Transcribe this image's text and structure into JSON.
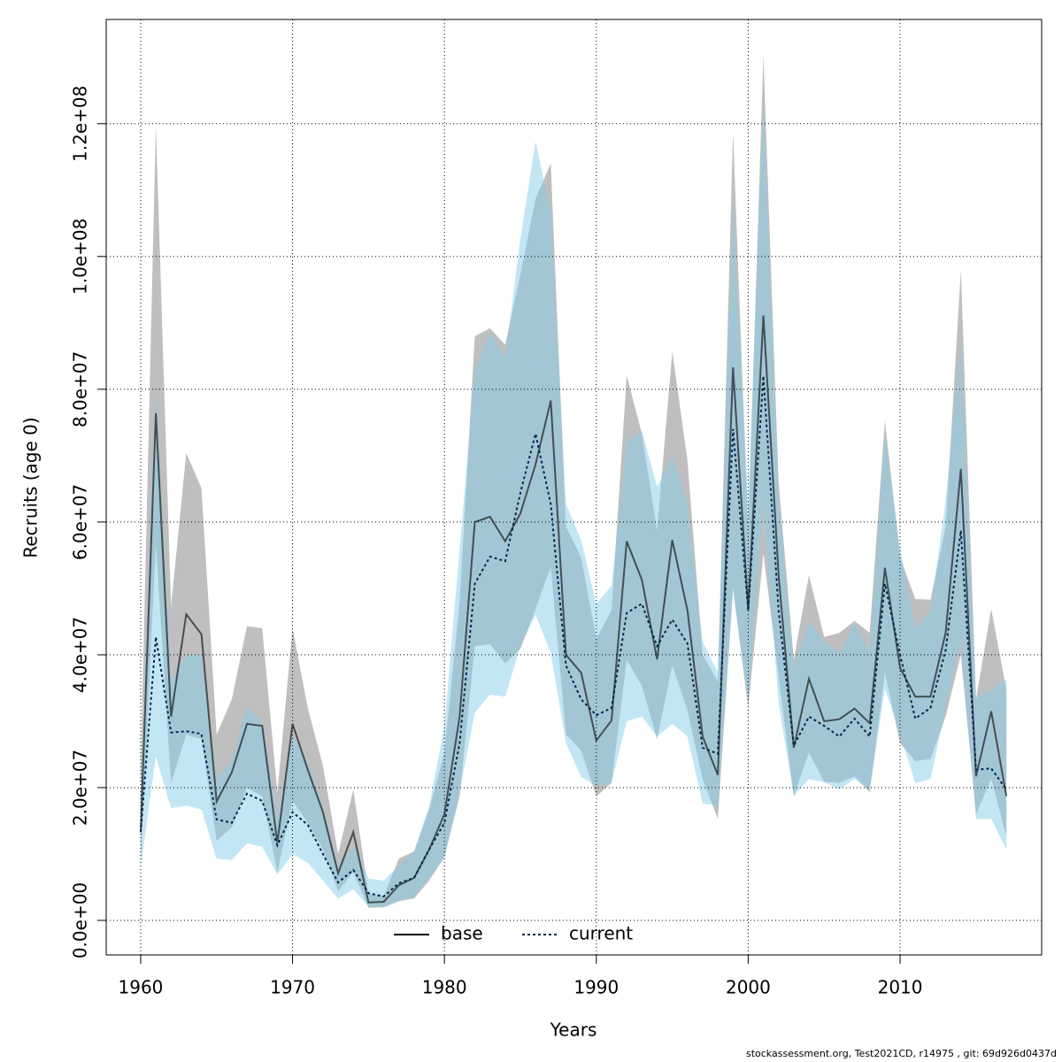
{
  "chart_data": {
    "type": "line",
    "xlabel": "Years",
    "ylabel": "Recruits (age 0)",
    "footer": "stockassessment.org, Test2021CD, r14975 , git: 69d926d0437d",
    "x": [
      1960,
      1961,
      1962,
      1963,
      1964,
      1965,
      1966,
      1967,
      1968,
      1969,
      1970,
      1971,
      1972,
      1973,
      1974,
      1975,
      1976,
      1977,
      1978,
      1979,
      1980,
      1981,
      1982,
      1983,
      1984,
      1985,
      1986,
      1987,
      1988,
      1989,
      1990,
      1991,
      1992,
      1993,
      1994,
      1995,
      1996,
      1997,
      1998,
      1999,
      2000,
      2001,
      2002,
      2003,
      2004,
      2005,
      2006,
      2007,
      2008,
      2009,
      2010,
      2011,
      2012,
      2013,
      2014,
      2015,
      2016,
      2017
    ],
    "xlim": [
      1957.73,
      2019.32
    ],
    "xticks": [
      1960,
      1970,
      1980,
      1990,
      2000,
      2010
    ],
    "ylim": [
      -5200000.0,
      135700000.0
    ],
    "yticks": [
      {
        "value": 0,
        "label": "0.0e+00"
      },
      {
        "value": 20000000,
        "label": "2.0e+07"
      },
      {
        "value": 40000000,
        "label": "4.0e+07"
      },
      {
        "value": 60000000,
        "label": "6.0e+07"
      },
      {
        "value": 80000000,
        "label": "8.0e+07"
      },
      {
        "value": 100000000,
        "label": "1.0e+08"
      },
      {
        "value": 120000000,
        "label": "1.2e+08"
      }
    ],
    "grid": true,
    "legend": "bottom",
    "series": [
      {
        "name": "base",
        "color": "#000000",
        "band_color": "rgba(128,128,128,0.5)",
        "dash": "solid",
        "values": [
          13300000.0,
          76400000.0,
          30700000.0,
          46100000.0,
          43100000.0,
          17900000.0,
          22300000.0,
          29600000.0,
          29300000.0,
          11700000.0,
          29600000.0,
          22700000.0,
          16300000.0,
          7100000.0,
          13300000.0,
          2700000.0,
          2800000.0,
          5300000.0,
          6400000.0,
          10700000.0,
          16000000.0,
          30700000.0,
          60000000.0,
          60800000.0,
          57100000.0,
          61300000.0,
          68700000.0,
          78300000.0,
          40000000.0,
          37300000.0,
          27100000.0,
          30100000.0,
          57100000.0,
          51300000.0,
          39300000.0,
          57300000.0,
          46700000.0,
          27700000.0,
          21900000.0,
          83300000.0,
          46700000.0,
          91100000.0,
          52000000.0,
          26000000.0,
          36400000.0,
          30000000.0,
          30300000.0,
          31900000.0,
          29700000.0,
          53100000.0,
          38000000.0,
          33700000.0,
          33700000.0,
          43300000.0,
          68000000.0,
          21700000.0,
          31500000.0,
          18700000.0
        ],
        "upper": [
          22700000.0,
          119700000.0,
          47300000.0,
          70400000.0,
          65100000.0,
          28000000.0,
          33300000.0,
          44300000.0,
          44000000.0,
          19300000.0,
          44000000.0,
          32000000.0,
          23300000.0,
          10000000.0,
          19700000.0,
          4000000.0,
          3700000.0,
          9300000.0,
          10400000.0,
          16700000.0,
          25300000.0,
          48000000.0,
          88000000.0,
          89200000.0,
          86700000.0,
          97300000.0,
          108700000.0,
          114000000.0,
          59300000.0,
          54700000.0,
          42400000.0,
          46700000.0,
          82100000.0,
          73300000.0,
          58700000.0,
          85700000.0,
          69300000.0,
          40000000.0,
          36000000.0,
          118700000.0,
          58700000.0,
          130300000.0,
          66000000.0,
          39300000.0,
          52000000.0,
          42700000.0,
          43300000.0,
          45100000.0,
          43300000.0,
          75300000.0,
          54700000.0,
          48400000.0,
          48300000.0,
          59300000.0,
          98000000.0,
          33300000.0,
          46900000.0,
          34700000.0
        ],
        "lower": [
          8700000.0,
          56700000.0,
          20700000.0,
          28000000.0,
          27300000.0,
          12000000.0,
          14000000.0,
          20000000.0,
          18700000.0,
          7300000.0,
          18000000.0,
          14700000.0,
          10700000.0,
          4400000.0,
          7300000.0,
          1900000.0,
          2000000.0,
          2900000.0,
          3300000.0,
          6000000.0,
          9600000.0,
          18700000.0,
          41300000.0,
          41600000.0,
          38700000.0,
          40900000.0,
          46900000.0,
          53300000.0,
          28000000.0,
          25600000.0,
          18700000.0,
          20700000.0,
          39300000.0,
          35300000.0,
          27300000.0,
          38400000.0,
          31600000.0,
          21300000.0,
          15300000.0,
          50000000.0,
          32000000.0,
          55300000.0,
          36700000.0,
          18700000.0,
          25300000.0,
          20900000.0,
          20700000.0,
          21700000.0,
          19300000.0,
          37300000.0,
          26700000.0,
          24000000.0,
          24300000.0,
          30700000.0,
          40000000.0,
          16000000.0,
          21300000.0,
          12700000.0
        ]
      },
      {
        "name": "current",
        "color": "#00264d",
        "band_color": "rgba(135,206,235,0.5)",
        "dash": "dotted",
        "values": [
          13300000.0,
          42700000.0,
          28300000.0,
          28500000.0,
          28100000.0,
          15200000.0,
          14700000.0,
          19100000.0,
          18000000.0,
          11300000.0,
          16300000.0,
          14400000.0,
          10000000.0,
          5700000.0,
          7600000.0,
          4100000.0,
          3600000.0,
          5600000.0,
          6400000.0,
          10700000.0,
          14700000.0,
          26700000.0,
          50700000.0,
          54800000.0,
          54100000.0,
          64400000.0,
          73300000.0,
          62700000.0,
          38400000.0,
          33300000.0,
          30900000.0,
          32000000.0,
          46300000.0,
          47700000.0,
          41300000.0,
          45300000.0,
          41700000.0,
          26000000.0,
          25100000.0,
          74000000.0,
          46700000.0,
          82000000.0,
          46700000.0,
          26300000.0,
          30700000.0,
          29300000.0,
          27700000.0,
          30400000.0,
          27700000.0,
          50700000.0,
          40000000.0,
          30400000.0,
          32000000.0,
          40700000.0,
          58700000.0,
          22700000.0,
          22900000.0,
          19700000.0
        ],
        "upper": [
          18700000.0,
          80000000.0,
          36000000.0,
          40000000.0,
          40000000.0,
          21300000.0,
          24000000.0,
          32000000.0,
          30000000.0,
          15300000.0,
          28000000.0,
          24000000.0,
          17100000.0,
          8000000.0,
          11300000.0,
          6300000.0,
          6000000.0,
          8300000.0,
          10400000.0,
          17300000.0,
          29300000.0,
          56000000.0,
          82700000.0,
          88700000.0,
          84700000.0,
          102700000.0,
          117300000.0,
          106700000.0,
          62700000.0,
          57300000.0,
          47700000.0,
          50400000.0,
          72000000.0,
          73700000.0,
          65300000.0,
          70000000.0,
          62700000.0,
          42000000.0,
          37300000.0,
          108700000.0,
          62700000.0,
          124000000.0,
          64000000.0,
          38000000.0,
          45100000.0,
          42000000.0,
          40300000.0,
          44700000.0,
          40300000.0,
          73300000.0,
          56000000.0,
          44000000.0,
          46400000.0,
          63300000.0,
          87300000.0,
          33600000.0,
          34700000.0,
          36300000.0
        ],
        "lower": [
          8000000.0,
          24700000.0,
          16900000.0,
          17300000.0,
          16700000.0,
          9300000.0,
          9100000.0,
          11600000.0,
          11100000.0,
          6900000.0,
          10000000.0,
          8700000.0,
          6000000.0,
          3300000.0,
          4700000.0,
          2100000.0,
          1900000.0,
          2900000.0,
          3500000.0,
          6400000.0,
          9300000.0,
          19300000.0,
          31300000.0,
          34000000.0,
          33700000.0,
          41300000.0,
          46000000.0,
          40300000.0,
          26700000.0,
          21600000.0,
          20300000.0,
          20700000.0,
          30000000.0,
          30700000.0,
          27700000.0,
          29600000.0,
          27700000.0,
          17600000.0,
          17300000.0,
          50000000.0,
          32700000.0,
          62900000.0,
          32700000.0,
          18700000.0,
          21300000.0,
          20800000.0,
          19700000.0,
          21300000.0,
          19600000.0,
          34900000.0,
          28000000.0,
          20700000.0,
          21300000.0,
          32000000.0,
          42400000.0,
          15300000.0,
          15300000.0,
          10700000.0
        ]
      }
    ]
  }
}
